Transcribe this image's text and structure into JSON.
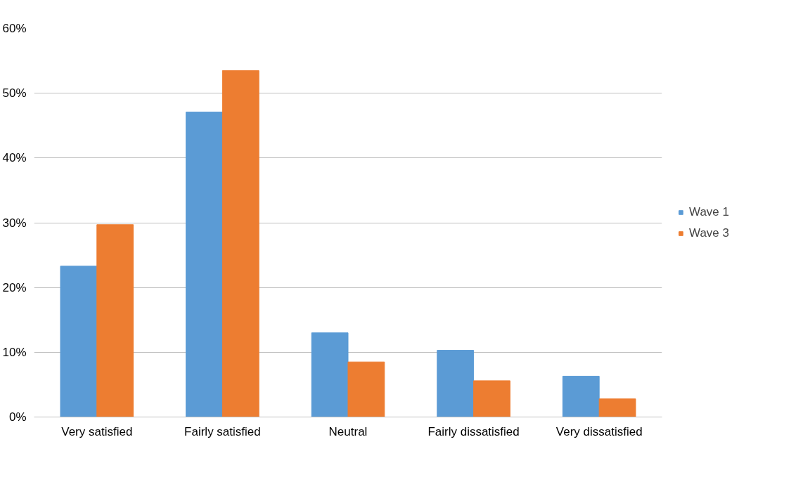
{
  "chart_data": {
    "type": "bar",
    "categories": [
      "Very satisfied",
      "Fairly satisfied",
      "Neutral",
      "Fairly dissatisfied",
      "Very dissatisfied"
    ],
    "series": [
      {
        "name": "Wave 1",
        "color": "#5b9bd5",
        "values": [
          23.3,
          47.1,
          13.0,
          10.3,
          6.3
        ]
      },
      {
        "name": "Wave 3",
        "color": "#ed7d31",
        "values": [
          29.7,
          53.5,
          8.5,
          5.6,
          2.8
        ]
      }
    ],
    "ylim": [
      0,
      60
    ],
    "yticks": [
      {
        "value": 0,
        "label": "0%"
      },
      {
        "value": 10,
        "label": "10%"
      },
      {
        "value": 20,
        "label": "20%"
      },
      {
        "value": 30,
        "label": "30%"
      },
      {
        "value": 40,
        "label": "40%"
      },
      {
        "value": 50,
        "label": "50%"
      },
      {
        "value": 60,
        "label": "60%"
      }
    ],
    "grid": "y",
    "legend": "right"
  }
}
